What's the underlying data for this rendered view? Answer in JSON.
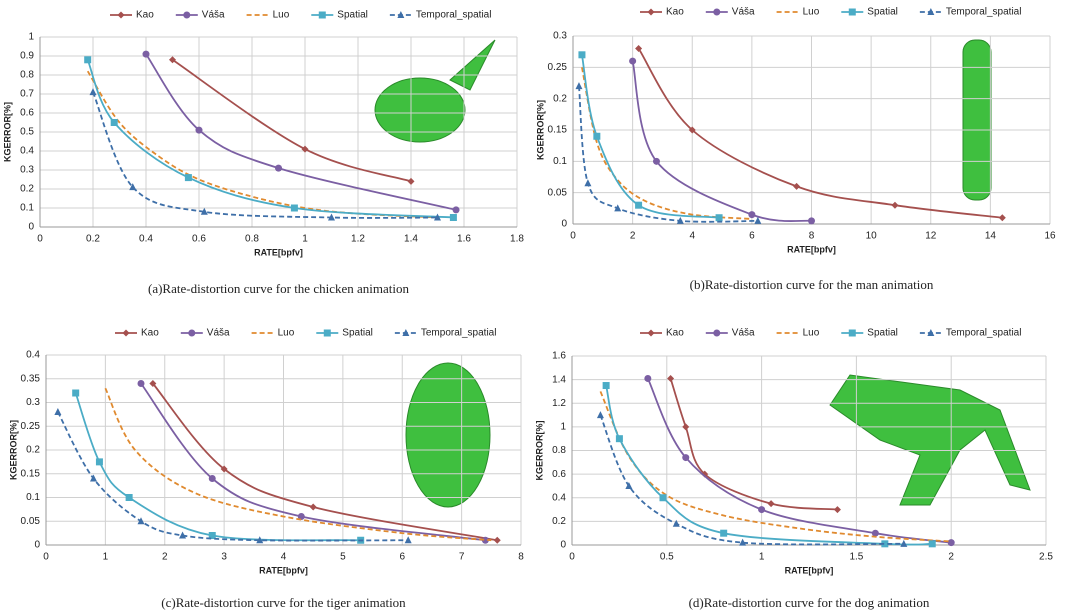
{
  "chart_data": [
    {
      "type": "line",
      "caption": "(a)Rate-distortion curve for the chicken animation",
      "xlabel": "RATE[bpfv]",
      "ylabel": "KGERROR[%]",
      "xlim": [
        0,
        1.8
      ],
      "xticks": [
        0,
        0.2,
        0.4,
        0.6,
        0.8,
        1,
        1.2,
        1.4,
        1.6,
        1.8
      ],
      "ylim": [
        0,
        1
      ],
      "yticks": [
        0,
        0.1,
        0.2,
        0.3,
        0.4,
        0.5,
        0.6,
        0.7,
        0.8,
        0.9,
        1
      ],
      "grid": true,
      "series": [
        {
          "name": "Kao",
          "color": "#a5504e",
          "dash": false,
          "marker": "diamond",
          "x": [
            0.5,
            1,
            1.4
          ],
          "values": [
            0.88,
            0.41,
            0.24
          ]
        },
        {
          "name": "Váša",
          "color": "#7b5fa3",
          "dash": false,
          "marker": "circle",
          "x": [
            0.4,
            0.6,
            0.9,
            1.57
          ],
          "values": [
            0.91,
            0.51,
            0.31,
            0.09
          ]
        },
        {
          "name": "Luo",
          "color": "#e08a2f",
          "dash": true,
          "marker": "none",
          "x": [
            0.18,
            0.3,
            0.45,
            0.6,
            0.8,
            1.0,
            1.2,
            1.5
          ],
          "values": [
            0.82,
            0.55,
            0.37,
            0.25,
            0.16,
            0.1,
            0.07,
            0.05
          ]
        },
        {
          "name": "Spatial",
          "color": "#4bacc6",
          "dash": false,
          "marker": "square",
          "x": [
            0.18,
            0.28,
            0.56,
            0.96,
            1.56
          ],
          "values": [
            0.88,
            0.55,
            0.26,
            0.1,
            0.05
          ]
        },
        {
          "name": "Temporal_spatial",
          "color": "#3e6fa8",
          "dash": true,
          "marker": "triangle",
          "x": [
            0.2,
            0.35,
            0.62,
            1.1,
            1.5
          ],
          "values": [
            0.71,
            0.21,
            0.08,
            0.05,
            0.05
          ]
        }
      ]
    },
    {
      "type": "line",
      "caption": "(b)Rate-distortion curve for the man animation",
      "xlabel": "RATE[bpfv]",
      "ylabel": "KGERROR[%]",
      "xlim": [
        0,
        16
      ],
      "xticks": [
        0,
        2,
        4,
        6,
        8,
        10,
        12,
        14,
        16
      ],
      "ylim": [
        0,
        0.3
      ],
      "yticks": [
        0,
        0.05,
        0.1,
        0.15,
        0.2,
        0.25,
        0.3
      ],
      "grid": true,
      "series": [
        {
          "name": "Kao",
          "color": "#a5504e",
          "dash": false,
          "marker": "diamond",
          "x": [
            2.2,
            4,
            7.5,
            10.8,
            14.4
          ],
          "values": [
            0.28,
            0.15,
            0.06,
            0.03,
            0.01
          ]
        },
        {
          "name": "Váša",
          "color": "#7b5fa3",
          "dash": false,
          "marker": "circle",
          "x": [
            2,
            2.8,
            6,
            8
          ],
          "values": [
            0.26,
            0.1,
            0.015,
            0.005
          ]
        },
        {
          "name": "Luo",
          "color": "#e08a2f",
          "dash": true,
          "marker": "none",
          "x": [
            0.3,
            0.8,
            1.5,
            2.5,
            4,
            6
          ],
          "values": [
            0.25,
            0.13,
            0.07,
            0.035,
            0.015,
            0.008
          ]
        },
        {
          "name": "Spatial",
          "color": "#4bacc6",
          "dash": false,
          "marker": "square",
          "x": [
            0.3,
            0.8,
            2.2,
            4.9
          ],
          "values": [
            0.27,
            0.14,
            0.03,
            0.01
          ]
        },
        {
          "name": "Temporal_spatial",
          "color": "#3e6fa8",
          "dash": true,
          "marker": "triangle",
          "x": [
            0.2,
            0.5,
            1.5,
            3.6,
            6.2
          ],
          "values": [
            0.22,
            0.065,
            0.025,
            0.005,
            0.005
          ]
        }
      ]
    },
    {
      "type": "line",
      "caption": "(c)Rate-distortion curve for the tiger animation",
      "xlabel": "RATE[bpfv]",
      "ylabel": "KGERROR[%]",
      "xlim": [
        0,
        8
      ],
      "xticks": [
        0,
        1,
        2,
        3,
        4,
        5,
        6,
        7,
        8
      ],
      "ylim": [
        0,
        0.4
      ],
      "yticks": [
        0,
        0.05,
        0.1,
        0.15,
        0.2,
        0.25,
        0.3,
        0.35,
        0.4
      ],
      "grid": true,
      "series": [
        {
          "name": "Kao",
          "color": "#a5504e",
          "dash": false,
          "marker": "diamond",
          "x": [
            1.8,
            3,
            4.5,
            7.6
          ],
          "values": [
            0.34,
            0.16,
            0.08,
            0.01
          ]
        },
        {
          "name": "Váša",
          "color": "#7b5fa3",
          "dash": false,
          "marker": "circle",
          "x": [
            1.6,
            2.8,
            4.3,
            7.4
          ],
          "values": [
            0.34,
            0.14,
            0.06,
            0.01
          ]
        },
        {
          "name": "Luo",
          "color": "#e08a2f",
          "dash": true,
          "marker": "none",
          "x": [
            1,
            1.5,
            2.5,
            4,
            6,
            7.5
          ],
          "values": [
            0.33,
            0.2,
            0.11,
            0.06,
            0.025,
            0.01
          ]
        },
        {
          "name": "Spatial",
          "color": "#4bacc6",
          "dash": false,
          "marker": "square",
          "x": [
            0.5,
            0.9,
            1.4,
            2.8,
            5.3
          ],
          "values": [
            0.32,
            0.175,
            0.1,
            0.02,
            0.01
          ]
        },
        {
          "name": "Temporal_spatial",
          "color": "#3e6fa8",
          "dash": true,
          "marker": "triangle",
          "x": [
            0.2,
            0.8,
            1.6,
            2.3,
            3.6,
            6.1
          ],
          "values": [
            0.28,
            0.14,
            0.05,
            0.02,
            0.01,
            0.01
          ]
        }
      ]
    },
    {
      "type": "line",
      "caption": "(d)Rate-distortion curve for the dog animation",
      "xlabel": "RATE[bpfv]",
      "ylabel": "KGERROR[%]",
      "xlim": [
        0,
        2.5
      ],
      "xticks": [
        0,
        0.5,
        1,
        1.5,
        2,
        2.5
      ],
      "ylim": [
        0,
        1.6
      ],
      "yticks": [
        0,
        0.2,
        0.4,
        0.6,
        0.8,
        1,
        1.2,
        1.4,
        1.6
      ],
      "grid": true,
      "series": [
        {
          "name": "Kao",
          "color": "#a5504e",
          "dash": false,
          "marker": "diamond",
          "x": [
            0.52,
            0.6,
            0.7,
            1.05,
            1.4
          ],
          "values": [
            1.41,
            1,
            0.6,
            0.35,
            0.3
          ]
        },
        {
          "name": "Váša",
          "color": "#7b5fa3",
          "dash": false,
          "marker": "circle",
          "x": [
            0.4,
            0.6,
            1,
            1.6,
            2
          ],
          "values": [
            1.41,
            0.74,
            0.3,
            0.1,
            0.02
          ]
        },
        {
          "name": "Luo",
          "color": "#e08a2f",
          "dash": true,
          "marker": "none",
          "x": [
            0.15,
            0.3,
            0.5,
            0.8,
            1.2,
            1.6,
            2
          ],
          "values": [
            1.3,
            0.75,
            0.42,
            0.25,
            0.14,
            0.07,
            0.03
          ]
        },
        {
          "name": "Spatial",
          "color": "#4bacc6",
          "dash": false,
          "marker": "square",
          "x": [
            0.18,
            0.25,
            0.48,
            0.8,
            1.65,
            1.9
          ],
          "values": [
            1.35,
            0.9,
            0.4,
            0.1,
            0.01,
            0.01
          ]
        },
        {
          "name": "Temporal_spatial",
          "color": "#3e6fa8",
          "dash": true,
          "marker": "triangle",
          "x": [
            0.15,
            0.3,
            0.55,
            0.9,
            1.75
          ],
          "values": [
            1.1,
            0.5,
            0.18,
            0.02,
            0.01
          ]
        }
      ]
    }
  ]
}
